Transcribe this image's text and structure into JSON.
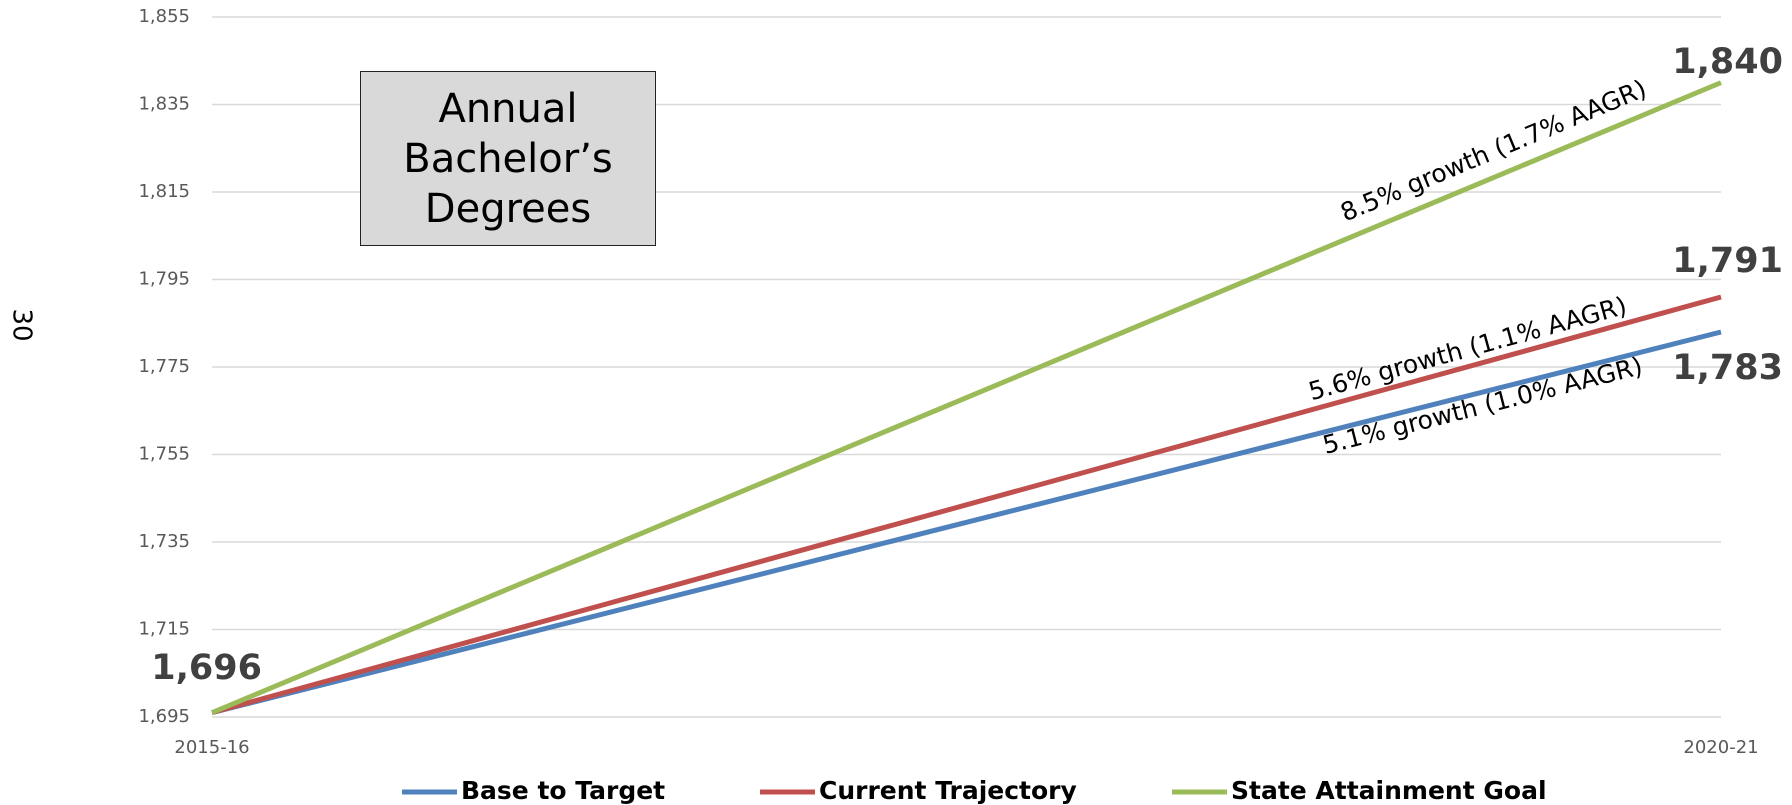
{
  "page_number": "30",
  "chart_data": {
    "type": "line",
    "title": "Annual Bachelor’s Degrees",
    "categories": [
      "2015-16",
      "2020-21"
    ],
    "series": [
      {
        "name": "Base to Target",
        "color": "#4f81bd",
        "values": [
          1696,
          1783
        ],
        "value_labels": [
          "1,696",
          "1,783"
        ],
        "annotation": "5.1% growth (1.0% AAGR)"
      },
      {
        "name": "Current Trajectory",
        "color": "#c0504d",
        "values": [
          1696,
          1791
        ],
        "value_labels": [
          null,
          "1,791"
        ],
        "annotation": "5.6% growth (1.1% AAGR)"
      },
      {
        "name": "State Attainment Goal",
        "color": "#9bbb59",
        "values": [
          1696,
          1840
        ],
        "value_labels": [
          null,
          "1,840"
        ],
        "annotation": "8.5% growth (1.7% AAGR)"
      }
    ],
    "ylim": [
      1695,
      1855
    ],
    "yticks": [
      {
        "value": 1695,
        "label": "1,695"
      },
      {
        "value": 1715,
        "label": "1,715"
      },
      {
        "value": 1735,
        "label": "1,735"
      },
      {
        "value": 1755,
        "label": "1,755"
      },
      {
        "value": 1775,
        "label": "1,775"
      },
      {
        "value": 1795,
        "label": "1,795"
      },
      {
        "value": 1815,
        "label": "1,815"
      },
      {
        "value": 1835,
        "label": "1,835"
      },
      {
        "value": 1855,
        "label": "1,855"
      }
    ],
    "grid": true,
    "legend": "bottom"
  }
}
